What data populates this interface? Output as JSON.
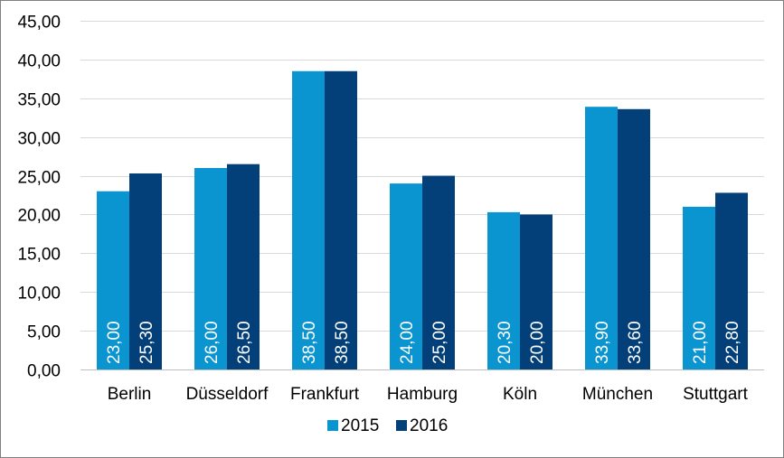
{
  "chart_data": {
    "type": "bar",
    "categories": [
      "Berlin",
      "Düsseldorf",
      "Frankfurt",
      "Hamburg",
      "Köln",
      "München",
      "Stuttgart"
    ],
    "series": [
      {
        "name": "2015",
        "color": "#0a94d0",
        "values": [
          23.0,
          26.0,
          38.5,
          24.0,
          20.3,
          33.9,
          21.0
        ],
        "labels": [
          "23,00",
          "26,00",
          "38,50",
          "24,00",
          "20,30",
          "33,90",
          "21,00"
        ]
      },
      {
        "name": "2016",
        "color": "#033f78",
        "values": [
          25.3,
          26.5,
          38.5,
          25.0,
          20.0,
          33.6,
          22.8
        ],
        "labels": [
          "25,30",
          "26,50",
          "38,50",
          "25,00",
          "20,00",
          "33,60",
          "22,80"
        ]
      }
    ],
    "ylim": [
      0,
      45
    ],
    "y_ticks": [
      0,
      5,
      10,
      15,
      20,
      25,
      30,
      35,
      40,
      45
    ],
    "y_tick_labels": [
      "0,00",
      "5,00",
      "10,00",
      "15,00",
      "20,00",
      "25,00",
      "30,00",
      "35,00",
      "40,00",
      "45,00"
    ],
    "grid": true,
    "legend_position": "bottom",
    "title": "",
    "xlabel": "",
    "ylabel": ""
  }
}
